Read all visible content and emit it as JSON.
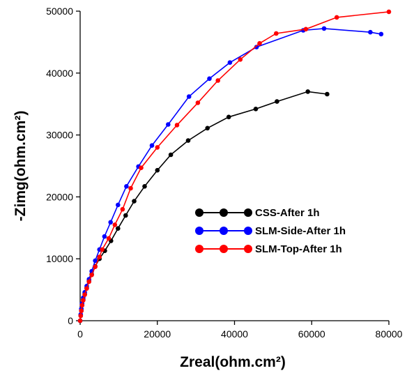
{
  "chart_data": {
    "type": "scatter",
    "xlabel": "Zreal(ohm.cm²)",
    "ylabel": "-Zimg(ohm.cm²)",
    "xlim": [
      0,
      80000
    ],
    "ylim": [
      0,
      50000
    ],
    "x_ticks": [
      "0",
      "20000",
      "40000",
      "60000",
      "80000"
    ],
    "y_ticks": [
      "0",
      "10000",
      "20000",
      "30000",
      "40000",
      "50000"
    ],
    "grid": false,
    "legend_position": "center-right",
    "series": [
      {
        "name": "CSS-After 1h",
        "color": "#000000",
        "x": [
          0,
          150,
          300,
          500,
          800,
          1200,
          1700,
          2300,
          3000,
          3900,
          5000,
          6400,
          8000,
          9800,
          11800,
          14000,
          16700,
          20000,
          23500,
          28000,
          33000,
          38500,
          45500,
          51000,
          59000,
          64000
        ],
        "y": [
          0,
          800,
          1600,
          2500,
          3400,
          4300,
          5300,
          6400,
          7500,
          8800,
          10000,
          11300,
          12900,
          14900,
          17000,
          19300,
          21700,
          24300,
          26800,
          29100,
          31100,
          32900,
          34200,
          35400,
          37000,
          36600
        ]
      },
      {
        "name": "SLM-Side-After 1h",
        "color": "#0000ff",
        "x": [
          0,
          150,
          300,
          500,
          800,
          1200,
          1700,
          2300,
          3000,
          3900,
          5000,
          6300,
          7900,
          9800,
          12000,
          15100,
          18600,
          22800,
          28200,
          33500,
          38800,
          45700,
          57800,
          63200,
          75200,
          78000
        ],
        "y": [
          0,
          1000,
          1900,
          2800,
          3700,
          4600,
          5600,
          6700,
          8000,
          9700,
          11500,
          13600,
          15900,
          18700,
          21700,
          24900,
          28300,
          31700,
          36200,
          39100,
          41700,
          44200,
          46900,
          47200,
          46600,
          46300
        ]
      },
      {
        "name": "SLM-Top-After 1h",
        "color": "#ff0000",
        "x": [
          0,
          150,
          300,
          500,
          800,
          1200,
          1700,
          2300,
          3000,
          3900,
          5000,
          5700,
          7400,
          9000,
          11000,
          13100,
          15800,
          20000,
          25100,
          30500,
          35700,
          41500,
          46500,
          50800,
          58500,
          66500,
          80000
        ],
        "y": [
          0,
          800,
          1600,
          2500,
          3300,
          4200,
          5200,
          6300,
          7400,
          8700,
          10300,
          11500,
          13300,
          15500,
          18000,
          21400,
          24700,
          28000,
          31600,
          35200,
          38800,
          42200,
          44800,
          46400,
          47100,
          49000,
          49900
        ]
      }
    ]
  }
}
